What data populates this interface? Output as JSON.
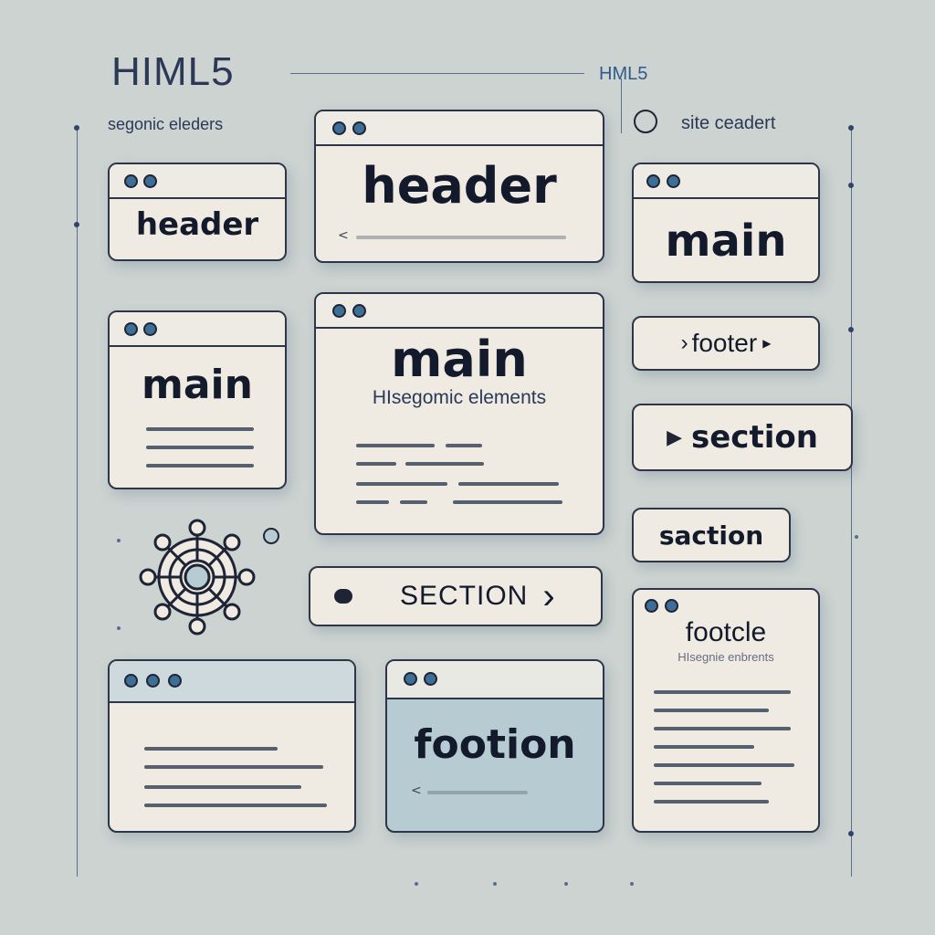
{
  "heading": {
    "title": "HIML5",
    "title_right": "HML5",
    "caption_left": "segonic eleders",
    "caption_right": "site ceadert"
  },
  "cards": {
    "header_small": {
      "label": "header"
    },
    "header_large": {
      "label": "header",
      "line_prefix": "<"
    },
    "main_right": {
      "label": "main"
    },
    "main_left": {
      "label": "main"
    },
    "main_center": {
      "label": "main",
      "subtitle": "HIsegomic elements"
    },
    "window_bottom_left": {},
    "footion": {
      "label": "footion",
      "line_prefix": "<"
    },
    "footcle": {
      "label": "footcle",
      "subtitle": "HIsegnie enbrents"
    }
  },
  "pills": {
    "footer": "footer",
    "section_bold": "section",
    "saction": "saction",
    "section_caps": "SECTION"
  },
  "icons": {
    "arrow_right": "▶",
    "chevron": "›"
  },
  "colors": {
    "background": "#ccd3d1",
    "card": "#efeae2",
    "card_teal": "#b6ccd2",
    "outline": "#2d3648",
    "accent": "#3c6e96"
  }
}
